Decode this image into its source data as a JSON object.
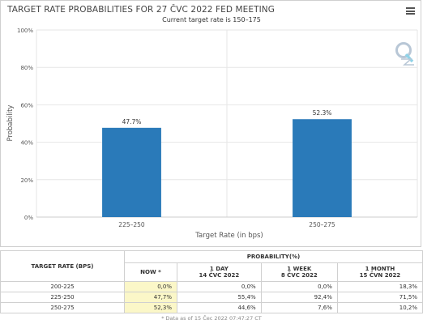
{
  "header": {
    "title": "TARGET RATE PROBABILITIES FOR 27 ČVC 2022 FED MEETING",
    "subtitle": "Current target rate is 150–175"
  },
  "icons": {
    "menu": "hamburger-menu-icon",
    "logo": "q-logo"
  },
  "colors": {
    "bar": "#2a7ab9",
    "grid": "#e6e6e6",
    "now_cell": "#fbf7c8"
  },
  "chart_data": {
    "type": "bar",
    "title": "TARGET RATE PROBABILITIES FOR 27 ČVC 2022 FED MEETING",
    "subtitle": "Current target rate is 150–175",
    "categories": [
      "225–250",
      "250–275"
    ],
    "values": [
      47.7,
      52.3
    ],
    "data_labels": [
      "47.7%",
      "52.3%"
    ],
    "xlabel": "Target Rate (in bps)",
    "ylabel": "Probability",
    "ylim": [
      0,
      100
    ],
    "yticks": [
      "0%",
      "20%",
      "40%",
      "60%",
      "80%",
      "100%"
    ],
    "grid": true,
    "legend": "none"
  },
  "table": {
    "col_target": "TARGET RATE (BPS)",
    "col_prob": "PROBABILITY(%)",
    "sub_headers": [
      {
        "line1": "NOW",
        "line2": "",
        "star": "*"
      },
      {
        "line1": "1 DAY",
        "line2": "14 ČVC 2022"
      },
      {
        "line1": "1 WEEK",
        "line2": "8 ČVC 2022"
      },
      {
        "line1": "1 MONTH",
        "line2": "15 ČVN 2022"
      }
    ],
    "rows": [
      {
        "range": "200-225",
        "now": "0,0%",
        "day": "0,0%",
        "week": "0,0%",
        "month": "18,3%"
      },
      {
        "range": "225-250",
        "now": "47,7%",
        "day": "55,4%",
        "week": "92,4%",
        "month": "71,5%"
      },
      {
        "range": "250-275",
        "now": "52,3%",
        "day": "44,6%",
        "week": "7,6%",
        "month": "10,2%"
      }
    ],
    "footnote": "* Data as of 15 Čec 2022 07:47:27 CT"
  }
}
